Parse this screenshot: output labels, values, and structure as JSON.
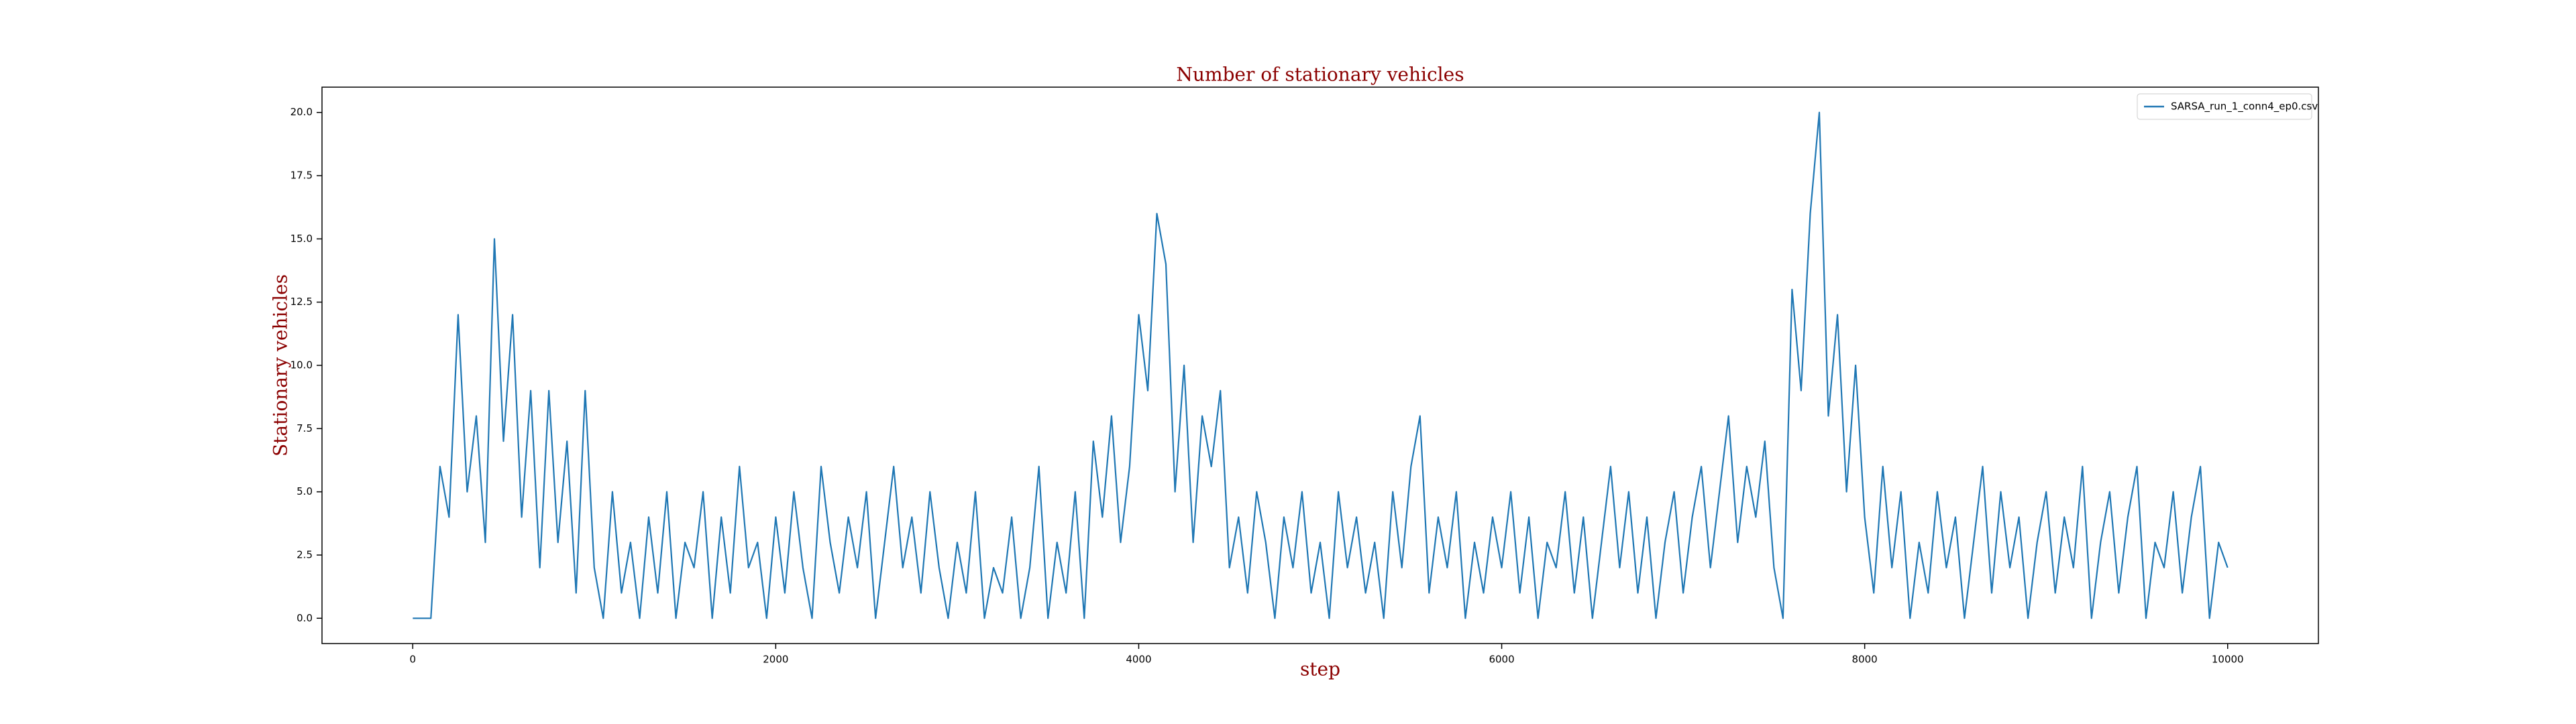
{
  "chart_data": {
    "type": "line",
    "title": "Number of stationary vehicles",
    "xlabel": "step",
    "ylabel": "Stationary vehicles",
    "x": [
      0,
      50,
      100,
      150,
      200,
      250,
      300,
      350,
      400,
      450,
      500,
      550,
      600,
      650,
      700,
      750,
      800,
      850,
      900,
      950,
      1000,
      1050,
      1100,
      1150,
      1200,
      1250,
      1300,
      1350,
      1400,
      1450,
      1500,
      1550,
      1600,
      1650,
      1700,
      1750,
      1800,
      1850,
      1900,
      1950,
      2000,
      2050,
      2100,
      2150,
      2200,
      2250,
      2300,
      2350,
      2400,
      2450,
      2500,
      2550,
      2600,
      2650,
      2700,
      2750,
      2800,
      2850,
      2900,
      2950,
      3000,
      3050,
      3100,
      3150,
      3200,
      3250,
      3300,
      3350,
      3400,
      3450,
      3500,
      3550,
      3600,
      3650,
      3700,
      3750,
      3800,
      3850,
      3900,
      3950,
      4000,
      4050,
      4100,
      4150,
      4200,
      4250,
      4300,
      4350,
      4400,
      4450,
      4500,
      4550,
      4600,
      4650,
      4700,
      4750,
      4800,
      4850,
      4900,
      4950,
      5000,
      5050,
      5100,
      5150,
      5200,
      5250,
      5300,
      5350,
      5400,
      5450,
      5500,
      5550,
      5600,
      5650,
      5700,
      5750,
      5800,
      5850,
      5900,
      5950,
      6000,
      6050,
      6100,
      6150,
      6200,
      6250,
      6300,
      6350,
      6400,
      6450,
      6500,
      6550,
      6600,
      6650,
      6700,
      6750,
      6800,
      6850,
      6900,
      6950,
      7000,
      7050,
      7100,
      7150,
      7200,
      7250,
      7300,
      7350,
      7400,
      7450,
      7500,
      7550,
      7600,
      7650,
      7700,
      7750,
      7800,
      7850,
      7900,
      7950,
      8000,
      8050,
      8100,
      8150,
      8200,
      8250,
      8300,
      8350,
      8400,
      8450,
      8500,
      8550,
      8600,
      8650,
      8700,
      8750,
      8800,
      8850,
      8900,
      8950,
      9000,
      9050,
      9100,
      9150,
      9200,
      9250,
      9300,
      9350,
      9400,
      9450,
      9500,
      9550,
      9600,
      9650,
      9700,
      9750,
      9800,
      9850,
      9900,
      9950,
      10000
    ],
    "series": [
      {
        "name": "SARSA_run_1_conn4_ep0.csv",
        "color": "#1f77b4",
        "values": [
          0,
          0,
          0,
          6,
          4,
          12,
          5,
          8,
          3,
          15,
          7,
          12,
          4,
          9,
          2,
          9,
          3,
          7,
          1,
          9,
          2,
          0,
          5,
          1,
          3,
          0,
          4,
          1,
          5,
          0,
          3,
          2,
          5,
          0,
          4,
          1,
          6,
          2,
          3,
          0,
          4,
          1,
          5,
          2,
          0,
          6,
          3,
          1,
          4,
          2,
          5,
          0,
          3,
          6,
          2,
          4,
          1,
          5,
          2,
          0,
          3,
          1,
          5,
          0,
          2,
          1,
          4,
          0,
          2,
          6,
          0,
          3,
          1,
          5,
          0,
          7,
          4,
          8,
          3,
          6,
          12,
          9,
          16,
          14,
          5,
          10,
          3,
          8,
          6,
          9,
          2,
          4,
          1,
          5,
          3,
          0,
          4,
          2,
          5,
          1,
          3,
          0,
          5,
          2,
          4,
          1,
          3,
          0,
          5,
          2,
          6,
          8,
          1,
          4,
          2,
          5,
          0,
          3,
          1,
          4,
          2,
          5,
          1,
          4,
          0,
          3,
          2,
          5,
          1,
          4,
          0,
          3,
          6,
          2,
          5,
          1,
          4,
          0,
          3,
          5,
          1,
          4,
          6,
          2,
          5,
          8,
          3,
          6,
          4,
          7,
          2,
          0,
          13,
          9,
          16,
          20,
          8,
          12,
          5,
          10,
          4,
          1,
          6,
          2,
          5,
          0,
          3,
          1,
          5,
          2,
          4,
          0,
          3,
          6,
          1,
          5,
          2,
          4,
          0,
          3,
          5,
          1,
          4,
          2,
          6,
          0,
          3,
          5,
          1,
          4,
          6,
          0,
          3,
          2,
          5,
          1,
          4,
          6,
          0,
          3,
          2
        ]
      }
    ],
    "xlim": [
      -500,
      10500
    ],
    "ylim": [
      -1,
      21
    ],
    "xticks": [
      0,
      2000,
      4000,
      6000,
      8000,
      10000
    ],
    "yticks": [
      {
        "value": 0,
        "label": "0.0"
      },
      2.5,
      {
        "value": 5,
        "label": "5.0"
      },
      7.5,
      {
        "value": 10,
        "label": "10.0"
      },
      12.5,
      {
        "value": 15,
        "label": "15.0"
      },
      17.5,
      {
        "value": 20,
        "label": "20.0"
      }
    ],
    "grid": false,
    "legend": "upper right"
  }
}
